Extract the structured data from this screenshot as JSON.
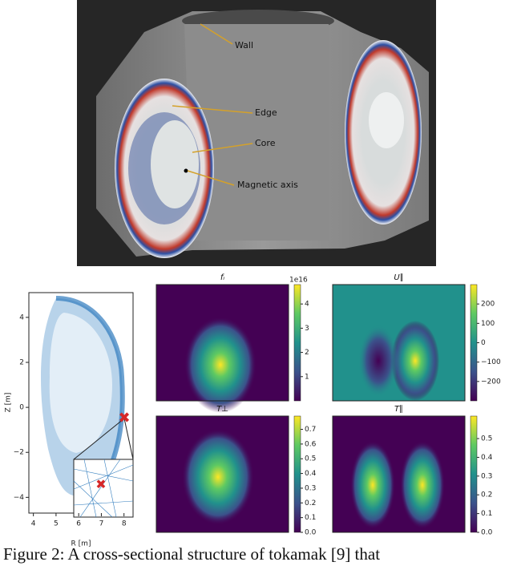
{
  "figure": {
    "render": {
      "labels": [
        "Wall",
        "Edge",
        "Core",
        "Magnetic axis"
      ]
    },
    "mesh_plot": {
      "xlabel": "R [m]",
      "ylabel": "Z [m]",
      "xlim": [
        3.8,
        8.4
      ],
      "ylim": [
        -4.7,
        5.1
      ],
      "xticks": [
        4,
        5,
        6,
        7,
        8
      ],
      "yticks": [
        4,
        2,
        0,
        {
          "value": -2,
          "label": "−2"
        },
        {
          "value": -4,
          "label": "−4"
        }
      ]
    },
    "heatmaps": [
      {
        "title": "fᵢ",
        "offset_label": "1e16",
        "clim": [
          0,
          4.8
        ],
        "yticks": [
          1,
          2,
          3,
          4
        ]
      },
      {
        "title": "U∥",
        "clim": [
          -300,
          300
        ],
        "yticks": [
          200,
          100,
          0,
          {
            "value": -100,
            "label": "−100"
          },
          {
            "value": -200,
            "label": "−200"
          }
        ]
      },
      {
        "title": "T⊥",
        "clim": [
          0,
          0.79
        ],
        "yticks": [
          {
            "value": 0,
            "label": "0.0"
          },
          0.1,
          0.2,
          0.3,
          0.4,
          0.5,
          0.6,
          0.7
        ]
      },
      {
        "title": "T∥",
        "clim": [
          0,
          0.62
        ],
        "yticks": [
          {
            "value": 0,
            "label": "0.0"
          },
          0.1,
          0.2,
          0.3,
          0.4,
          0.5
        ]
      }
    ]
  },
  "caption": "Figure 2: A cross-sectional structure of tokamak [9] that"
}
